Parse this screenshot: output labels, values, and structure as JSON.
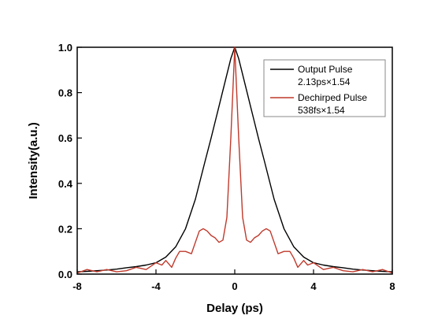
{
  "chart_data": {
    "type": "line",
    "xlabel": "Delay (ps)",
    "ylabel": "Intensity(a.u.)",
    "xlim": [
      -8,
      8
    ],
    "ylim": [
      0,
      1.0
    ],
    "x_ticks": [
      -8,
      -4,
      0,
      4,
      8
    ],
    "y_ticks": [
      0.0,
      0.2,
      0.4,
      0.6,
      0.8,
      1.0
    ],
    "x_tick_labels": [
      "-8",
      "-4",
      "0",
      "4",
      "8"
    ],
    "y_tick_labels": [
      "0.0",
      "0.2",
      "0.4",
      "0.6",
      "0.8",
      "1.0"
    ],
    "grid": false,
    "legend_position": "top-right",
    "series": [
      {
        "name": "Output Pulse",
        "sublabel": "2.13ps×1.54",
        "color": "#000000",
        "x": [
          -8,
          -7.5,
          -7,
          -6.5,
          -6,
          -5.5,
          -5,
          -4.5,
          -4,
          -3.5,
          -3,
          -2.5,
          -2,
          -1.5,
          -1.2,
          -1,
          -0.8,
          -0.6,
          -0.4,
          -0.2,
          0,
          0.2,
          0.4,
          0.6,
          0.8,
          1,
          1.2,
          1.5,
          2,
          2.5,
          3,
          3.5,
          4,
          4.5,
          5,
          5.5,
          6,
          6.5,
          7,
          7.5,
          8
        ],
        "y": [
          0.01,
          0.012,
          0.015,
          0.018,
          0.022,
          0.028,
          0.033,
          0.04,
          0.05,
          0.075,
          0.12,
          0.2,
          0.33,
          0.5,
          0.6,
          0.67,
          0.74,
          0.81,
          0.88,
          0.95,
          1.0,
          0.95,
          0.88,
          0.81,
          0.74,
          0.67,
          0.6,
          0.5,
          0.33,
          0.2,
          0.12,
          0.075,
          0.05,
          0.04,
          0.033,
          0.028,
          0.022,
          0.018,
          0.015,
          0.012,
          0.01
        ]
      },
      {
        "name": "Dechirped Pulse",
        "sublabel": "538fs×1.54",
        "color": "#c0392b",
        "x": [
          -8,
          -7.5,
          -7,
          -6.5,
          -6,
          -5.5,
          -5,
          -4.5,
          -4,
          -3.7,
          -3.5,
          -3.2,
          -3,
          -2.8,
          -2.5,
          -2.2,
          -2,
          -1.8,
          -1.6,
          -1.4,
          -1.2,
          -1,
          -0.8,
          -0.6,
          -0.4,
          -0.2,
          0,
          0.2,
          0.4,
          0.6,
          0.8,
          1,
          1.2,
          1.4,
          1.6,
          1.8,
          2,
          2.2,
          2.5,
          2.8,
          3,
          3.2,
          3.5,
          3.7,
          4,
          4.5,
          5,
          5.5,
          6,
          6.5,
          7,
          7.5,
          8
        ],
        "y": [
          0.005,
          0.02,
          0.01,
          0.02,
          0.01,
          0.015,
          0.03,
          0.02,
          0.05,
          0.04,
          0.06,
          0.03,
          0.07,
          0.1,
          0.1,
          0.09,
          0.14,
          0.19,
          0.2,
          0.19,
          0.17,
          0.16,
          0.14,
          0.15,
          0.25,
          0.6,
          1.0,
          0.6,
          0.25,
          0.15,
          0.14,
          0.16,
          0.17,
          0.19,
          0.2,
          0.19,
          0.14,
          0.09,
          0.1,
          0.1,
          0.07,
          0.03,
          0.06,
          0.04,
          0.05,
          0.02,
          0.03,
          0.015,
          0.01,
          0.02,
          0.01,
          0.02,
          0.005
        ]
      }
    ]
  }
}
